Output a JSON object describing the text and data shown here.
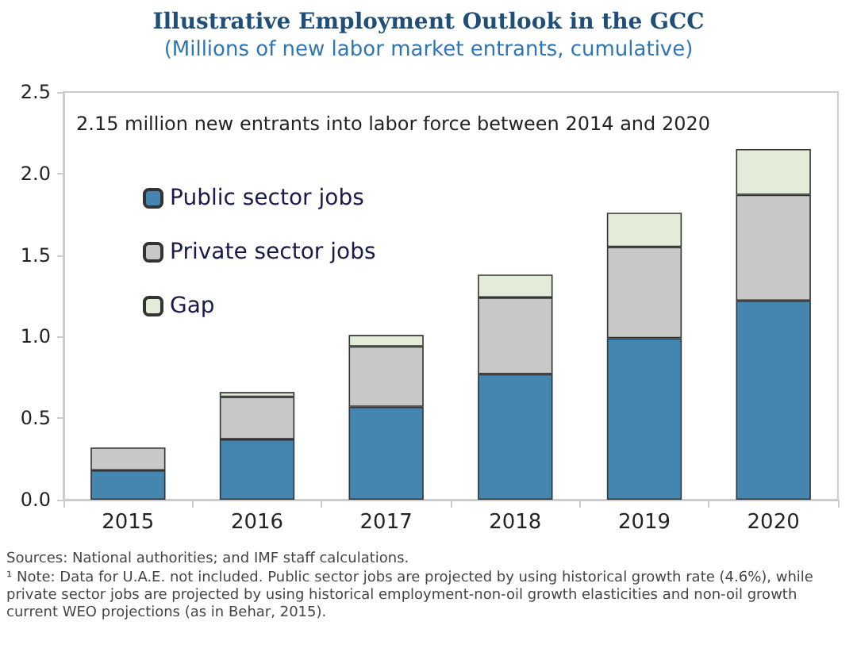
{
  "chart_data": {
    "type": "bar",
    "stacked": true,
    "title": "Illustrative Employment Outlook in the GCC",
    "subtitle": "(Millions of new labor market entrants, cumulative)",
    "categories": [
      "2015",
      "2016",
      "2017",
      "2018",
      "2019",
      "2020"
    ],
    "series": [
      {
        "name": "Public sector jobs",
        "color": "#4586b0",
        "values": [
          0.18,
          0.37,
          0.57,
          0.77,
          0.99,
          1.22
        ]
      },
      {
        "name": "Private sector jobs",
        "color": "#c8c8c8",
        "values": [
          0.14,
          0.26,
          0.37,
          0.47,
          0.56,
          0.65
        ]
      },
      {
        "name": "Gap",
        "color": "#e3ecd9",
        "values": [
          null,
          0.03,
          0.07,
          0.14,
          0.21,
          0.28
        ]
      }
    ],
    "ylim": [
      0,
      2.5
    ],
    "yticks": [
      {
        "value": 0,
        "label": "0.0"
      },
      {
        "value": 0.5,
        "label": "0.5"
      },
      {
        "value": 1,
        "label": "1.0"
      },
      {
        "value": 1.5,
        "label": "1.5"
      },
      {
        "value": 2,
        "label": "2.0"
      },
      {
        "value": 2.5,
        "label": "2.5"
      }
    ],
    "grid": false,
    "legend": "top left",
    "annotations": [
      "2.15 million new entrants into labor force between 2014 and 2020",
      "Sources: National authorities; and IMF staff calculations.",
      "¹ Note: Data for U.A.E. not included. Public sector jobs are projected by using historical growth rate (4.6%), while private sector jobs are projected by using historical employment-non-oil growth elasticities and non-oil growth current WEO projections (as in Behar, 2015)."
    ]
  }
}
